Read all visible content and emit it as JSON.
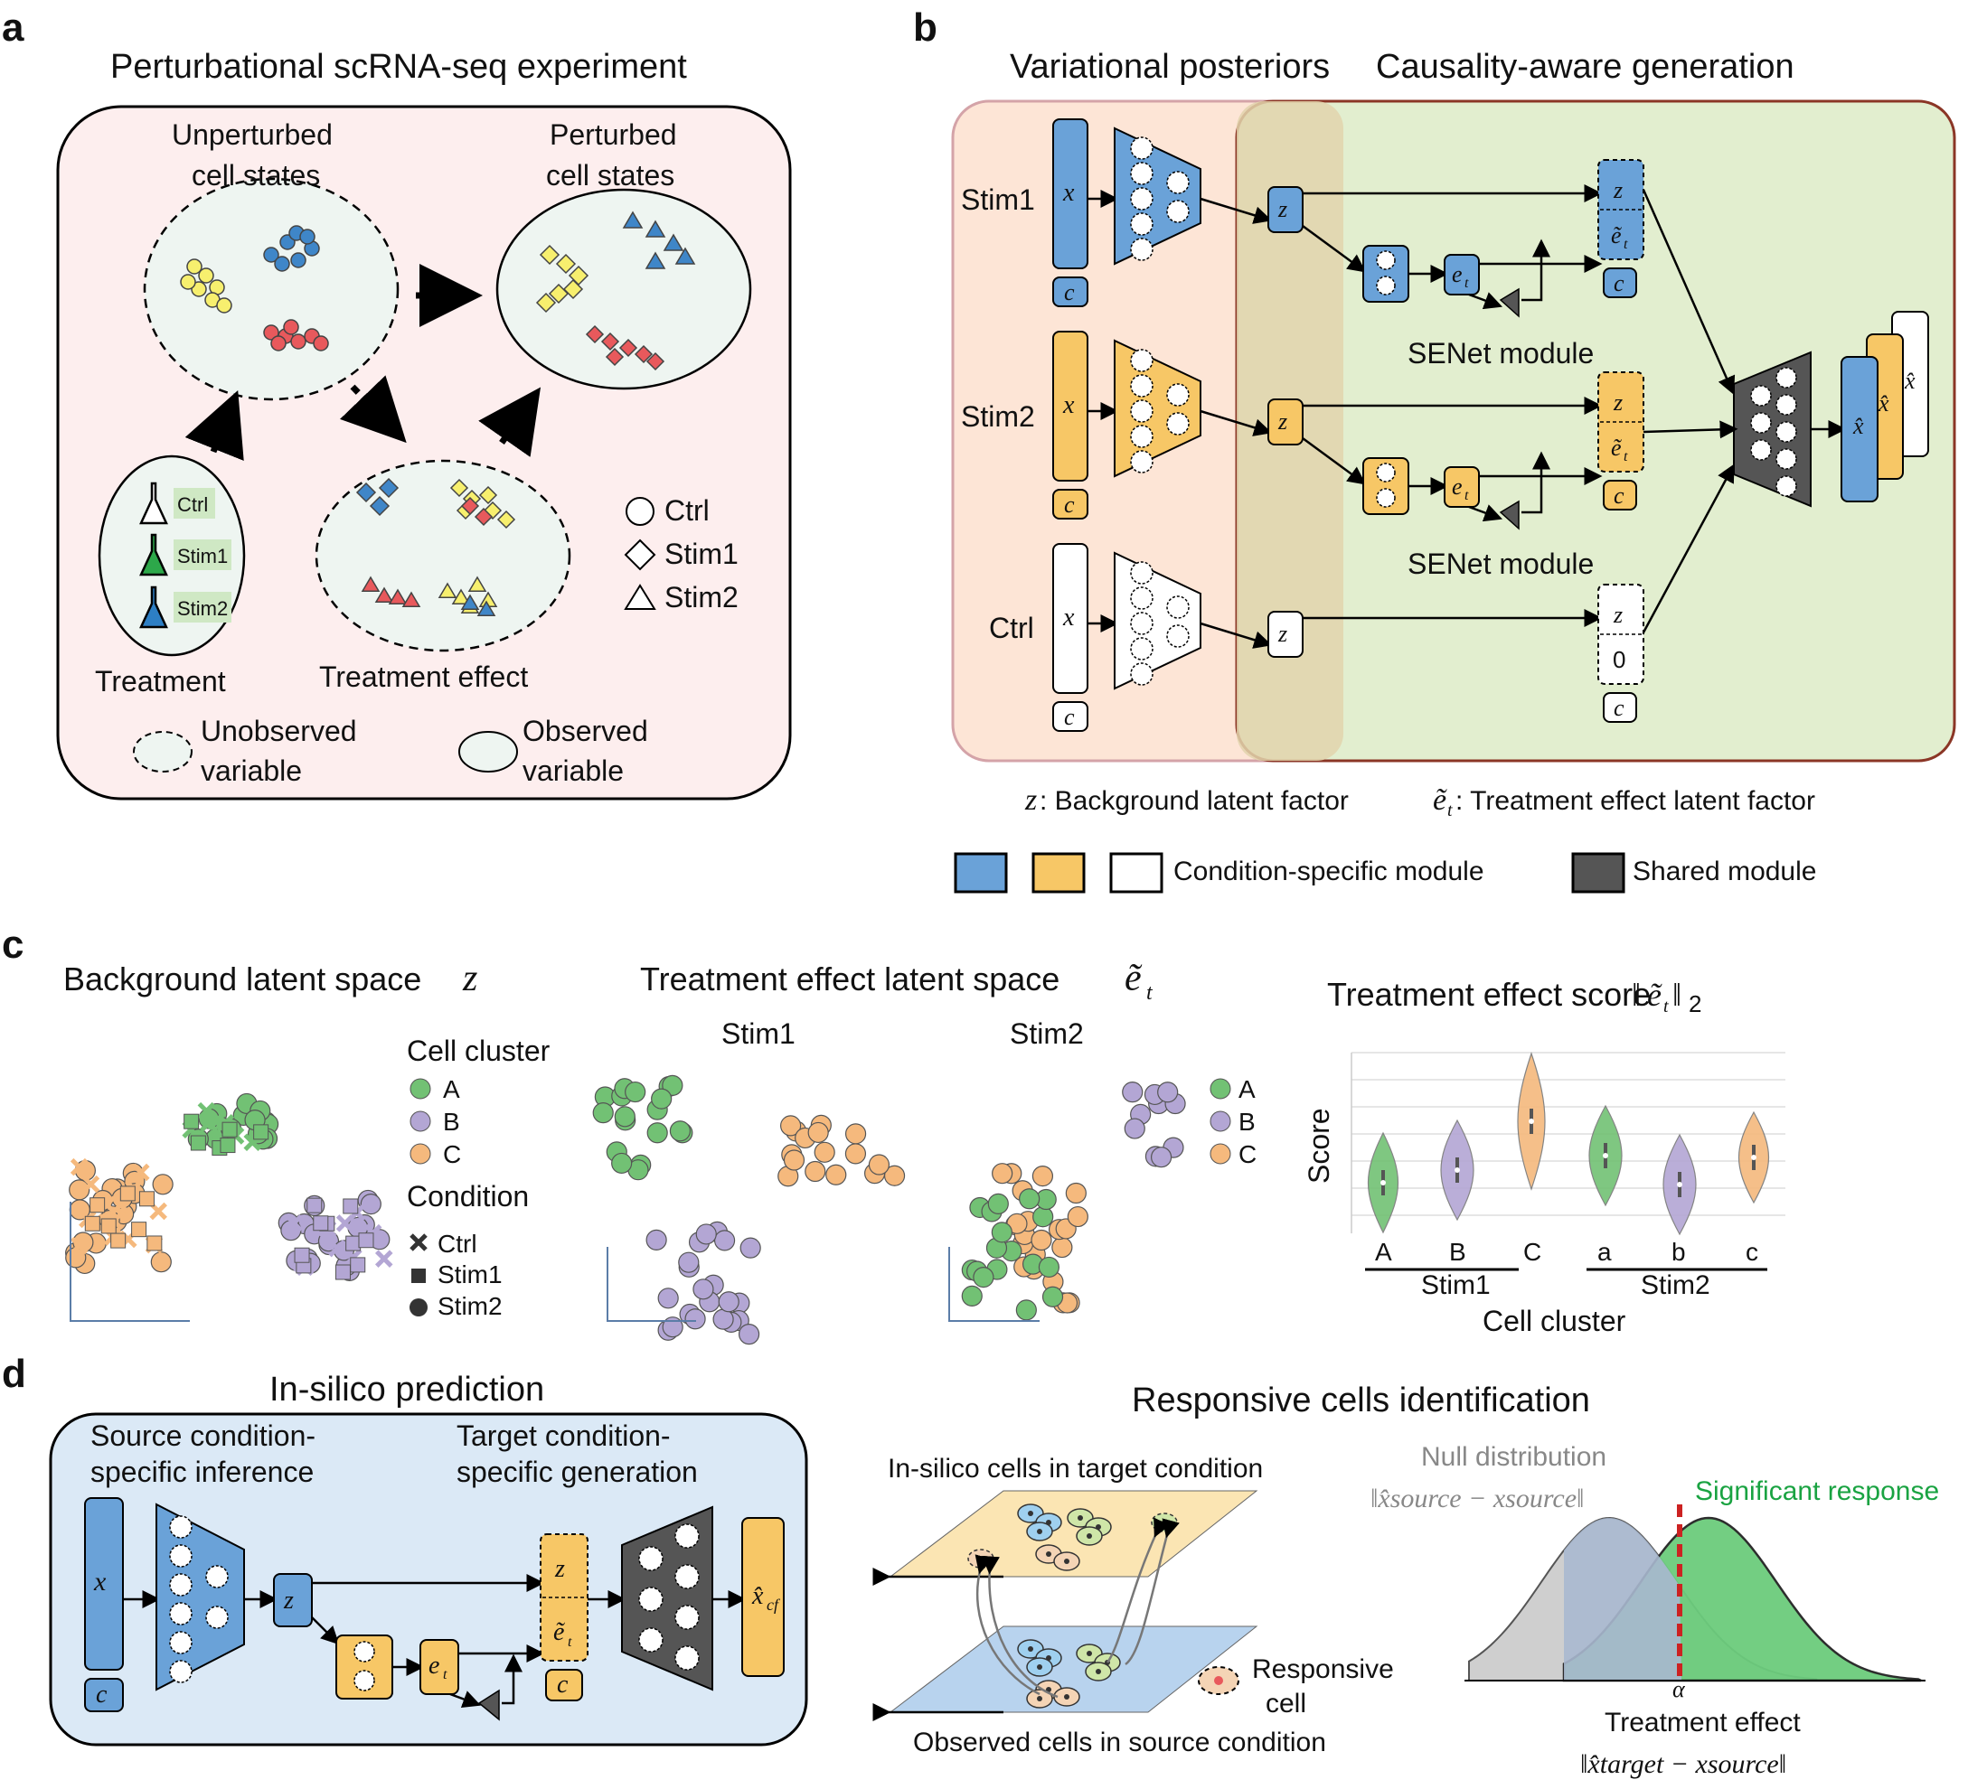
{
  "panels": {
    "a": "a",
    "b": "b",
    "c": "c",
    "d": "d"
  },
  "a": {
    "title": "Perturbational scRNA-seq experiment",
    "unperturbed": [
      "Unperturbed",
      "cell states"
    ],
    "perturbed": [
      "Perturbed",
      "cell states"
    ],
    "treatment": "Treatment",
    "treatment_effect": "Treatment effect",
    "flasks": [
      "Ctrl",
      "Stim1",
      "Stim2"
    ],
    "legend_shapes": [
      "Ctrl",
      "Stim1",
      "Stim2"
    ],
    "unobserved": [
      "Unobserved",
      "variable"
    ],
    "observed": [
      "Observed",
      "variable"
    ]
  },
  "b": {
    "title_left": "Variational posteriors",
    "title_right": "Causality-aware generation",
    "rows": [
      "Stim1",
      "Stim2",
      "Ctrl"
    ],
    "sym_x": "x",
    "sym_c": "c",
    "sym_z": "z",
    "sym_e": "e",
    "sym_et": "ẽ",
    "sym_t": "t",
    "sym_zero": "0",
    "sym_xhat": "x̂",
    "senet": "SENet module",
    "def_z": ": Background latent factor",
    "def_e": ": Treatment effect latent factor",
    "legend_cond": "Condition-specific module",
    "legend_shared": "Shared module"
  },
  "c": {
    "bg_title": "Background latent space ",
    "te_title": "Treatment effect latent space ",
    "stim1": "Stim1",
    "stim2": "Stim2",
    "cell_cluster": "Cell cluster",
    "clusters": [
      "A",
      "B",
      "C"
    ],
    "condition": "Condition",
    "conditions": [
      "Ctrl",
      "Stim1",
      "Stim2"
    ],
    "score_title": "Treatment effect score",
    "norm_sub": "2"
  },
  "d": {
    "insilico_title": "In-silico prediction",
    "source": [
      "Source condition-",
      "specific inference"
    ],
    "target": [
      "Target condition-",
      "specific generation"
    ],
    "xcf": "x̂",
    "cf": "cf",
    "responsive_title": "Responsive cells identification",
    "insilico_cells": "In-silico cells in target condition",
    "observed_cells": "Observed cells in source condition",
    "responsive": [
      "Responsive",
      "cell"
    ],
    "null_dist": "Null distribution",
    "null_formula": "‖x̂source − xsource‖",
    "significant": "Significant response",
    "alpha": "α",
    "te_label": "Treatment effect",
    "te_formula": "‖x̂target − xsource‖"
  },
  "colors": {
    "stim1": "#6aa2d8",
    "stim2": "#f7c766",
    "ctrl": "#ffffff",
    "shared": "#555555",
    "A": "#72c174",
    "B": "#b3a6d4",
    "C": "#f5b97d",
    "red": "#e8595c",
    "yellow": "#f7ef6e",
    "blue": "#3f86c8",
    "sig": "#1aa342"
  },
  "chart_data": {
    "type": "violin",
    "title": "Treatment effect score",
    "ylabel": "Score",
    "xlabel": "Cell cluster",
    "categories": [
      "A",
      "B",
      "C",
      "a",
      "b",
      "c"
    ],
    "groups": [
      "Stim1",
      "Stim2"
    ],
    "medians": [
      0.28,
      0.35,
      0.62,
      0.43,
      0.27,
      0.42
    ]
  }
}
